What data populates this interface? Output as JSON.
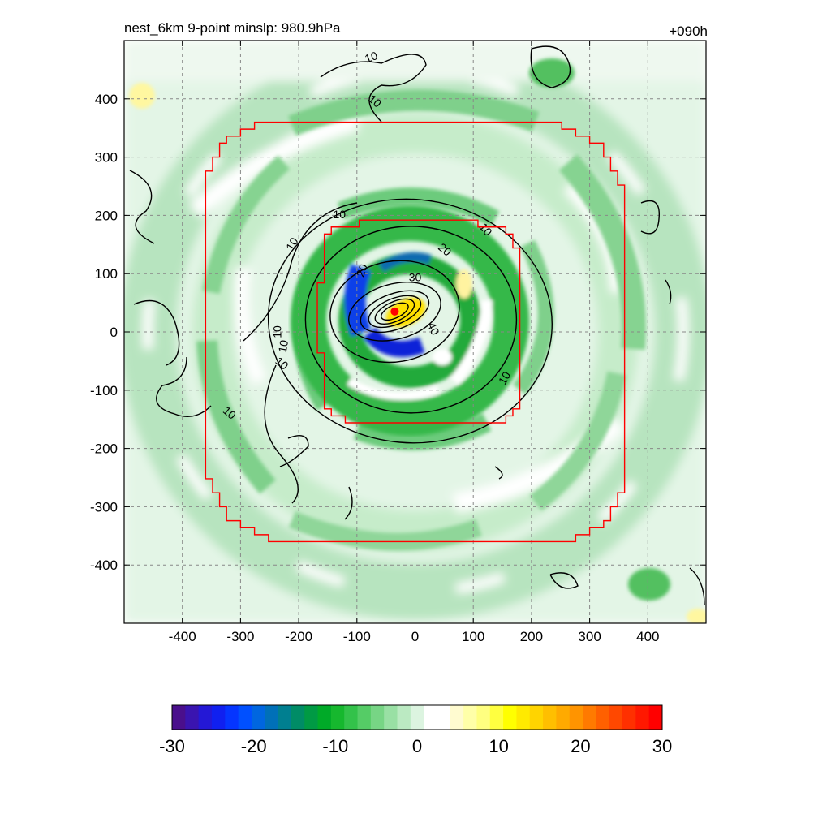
{
  "header": {
    "title": "nest_6km  9-point minslp: 980.9hPa",
    "time_label": "+090h"
  },
  "chart_data": {
    "type": "heatmap",
    "xlim": [
      -500,
      500
    ],
    "ylim": [
      -500,
      500
    ],
    "x_ticks": [
      -400,
      -300,
      -200,
      -100,
      0,
      100,
      200,
      300,
      400
    ],
    "y_ticks": [
      400,
      300,
      200,
      100,
      0,
      -100,
      -200,
      -300,
      -400
    ],
    "grid": true,
    "center_marker": {
      "x": -35,
      "y": 35,
      "color": "#ff0000"
    },
    "nest_boundaries": [
      {
        "name": "outer",
        "radius": 390,
        "color": "#ff0000"
      },
      {
        "name": "inner",
        "radius": 185,
        "center": [
          10,
          15
        ],
        "color": "#ff0000"
      }
    ],
    "contour_labels": [
      {
        "text": "10",
        "x": -75,
        "y": 470,
        "rot": -20
      },
      {
        "text": "10",
        "x": -70,
        "y": 395,
        "rot": 40
      },
      {
        "text": "10",
        "x": -130,
        "y": 200,
        "rot": 0
      },
      {
        "text": "10",
        "x": -210,
        "y": 150,
        "rot": -60
      },
      {
        "text": "10",
        "x": 120,
        "y": 175,
        "rot": 50
      },
      {
        "text": "20",
        "x": 50,
        "y": 140,
        "rot": 40
      },
      {
        "text": "20",
        "x": -90,
        "y": 105,
        "rot": -70
      },
      {
        "text": "30",
        "x": 0,
        "y": 92,
        "rot": 0
      },
      {
        "text": "40",
        "x": 30,
        "y": 5,
        "rot": 65
      },
      {
        "text": "10",
        "x": -235,
        "y": 0,
        "rot": -90
      },
      {
        "text": "10",
        "x": -225,
        "y": -25,
        "rot": -80
      },
      {
        "text": "10",
        "x": -230,
        "y": -55,
        "rot": 40
      },
      {
        "text": "10",
        "x": 155,
        "y": -80,
        "rot": -60
      },
      {
        "text": "10",
        "x": -320,
        "y": -140,
        "rot": 40
      }
    ],
    "colorbar": {
      "ticks": [
        -30,
        -20,
        -10,
        0,
        10,
        20,
        30
      ],
      "min": -30,
      "max": 30,
      "colors": [
        "#4a0f8c",
        "#3a14b0",
        "#2418d6",
        "#1020f0",
        "#0535ff",
        "#0050ff",
        "#0066e0",
        "#0070b8",
        "#007f90",
        "#008c66",
        "#009a44",
        "#00aa28",
        "#16b82e",
        "#33c24a",
        "#55cc66",
        "#77d585",
        "#99e0a4",
        "#bbeac2",
        "#dcf4e0",
        "#ffffff",
        "#ffffff",
        "#fffbd0",
        "#ffffa8",
        "#ffff80",
        "#ffff40",
        "#ffff00",
        "#ffea00",
        "#ffd400",
        "#ffbf00",
        "#ffaa00",
        "#ff9400",
        "#ff7a00",
        "#ff6000",
        "#ff4800",
        "#ff3000",
        "#ff1800",
        "#ff0000"
      ]
    }
  }
}
